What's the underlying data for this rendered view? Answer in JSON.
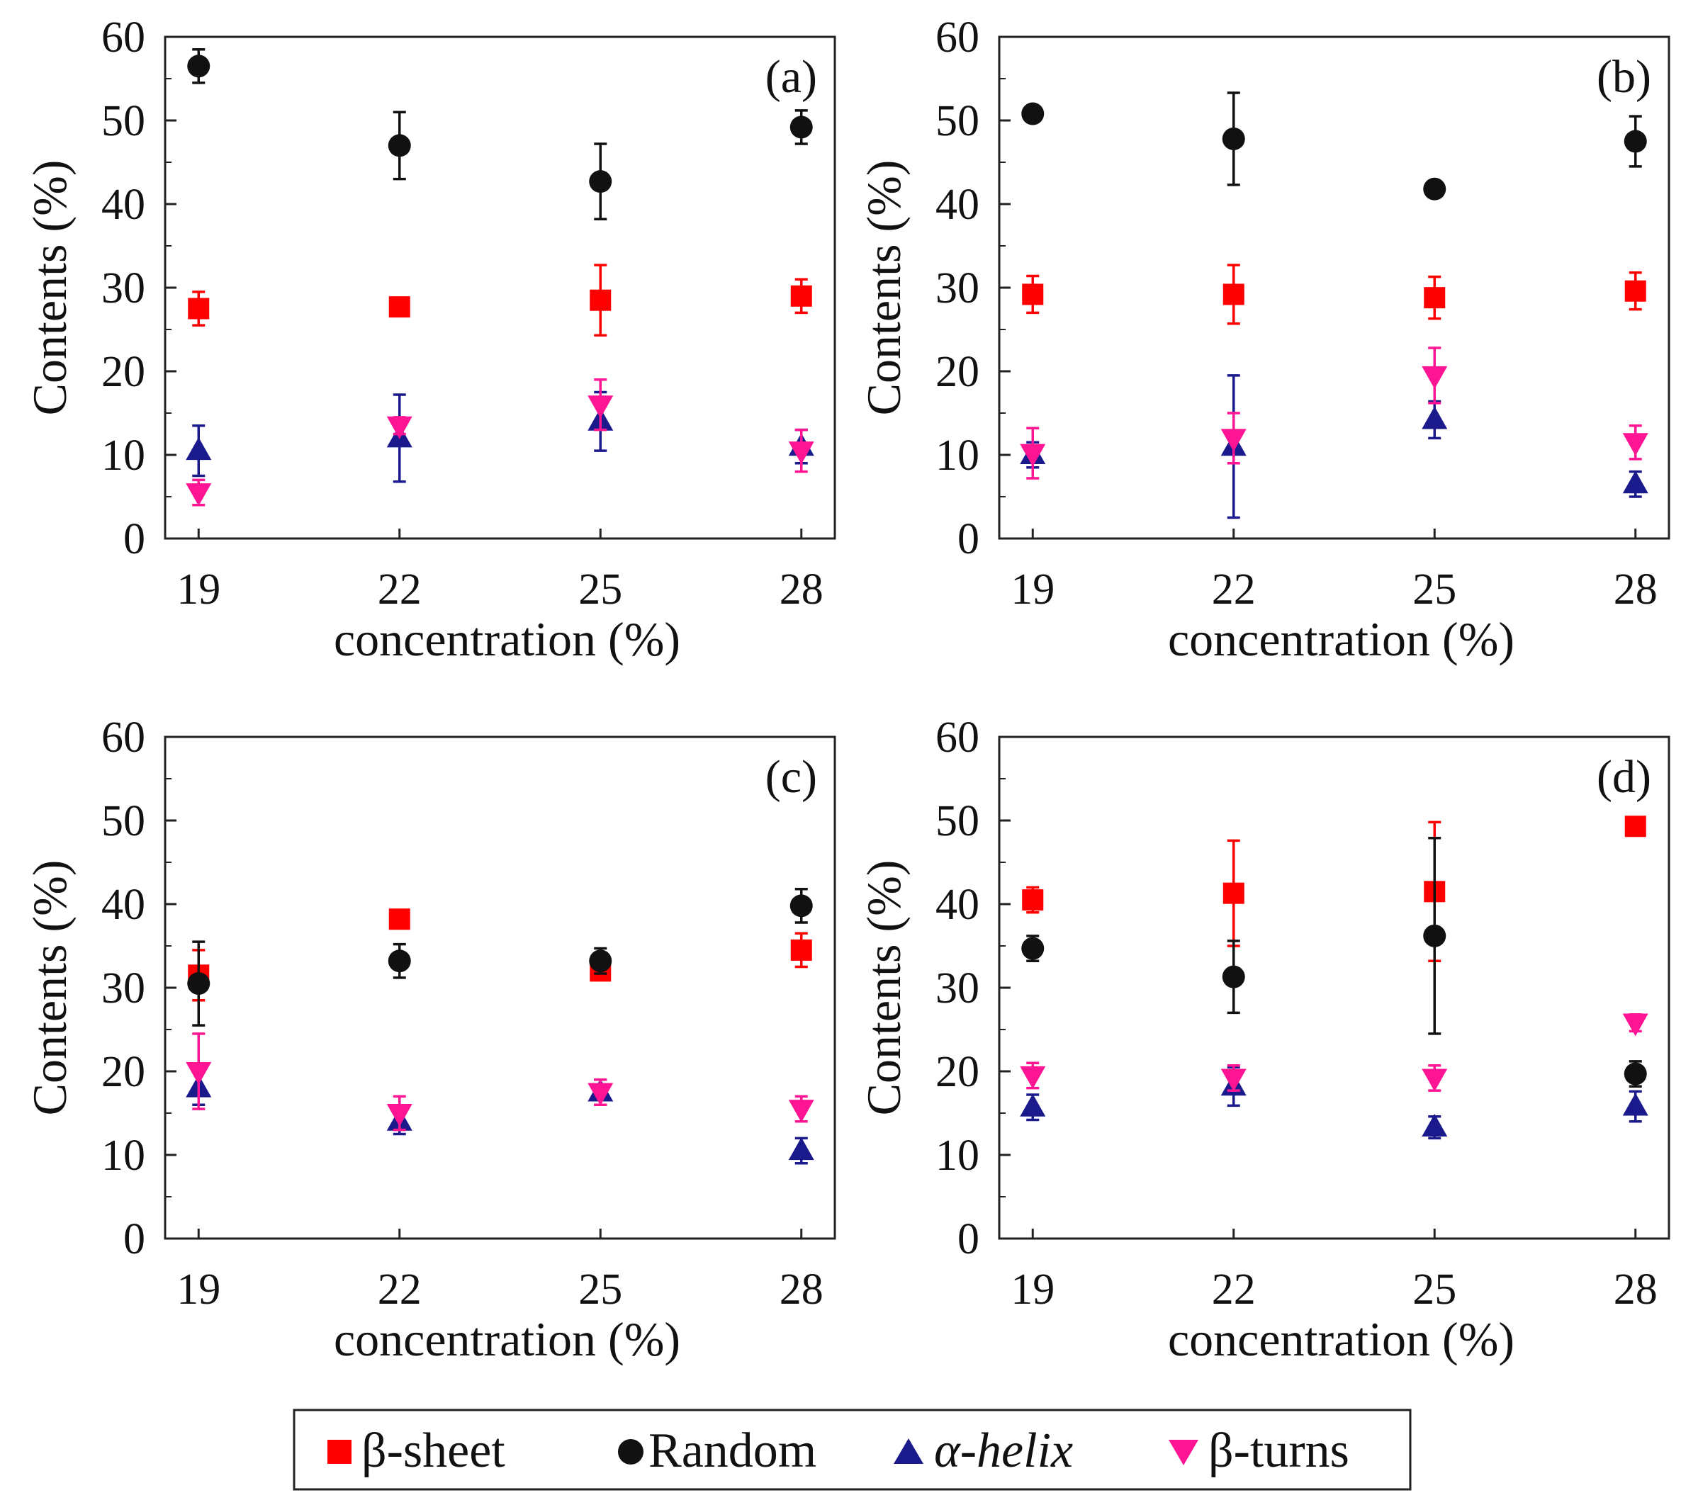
{
  "legend": [
    {
      "name": "β-sheet",
      "color": "#ff0000",
      "marker": "square"
    },
    {
      "name": "Random",
      "color": "#111111",
      "marker": "circle"
    },
    {
      "name": "α-helix",
      "color": "#1a1a8c",
      "marker": "triangle-up"
    },
    {
      "name": "β-turns",
      "color": "#ff1493",
      "marker": "triangle-down"
    }
  ],
  "chart_data": [
    {
      "type": "scatter",
      "panel_label": "(a)",
      "xlabel": "concentration (%)",
      "ylabel": "Contents (%)",
      "categories": [
        "19",
        "22",
        "25",
        "28"
      ],
      "ylim": [
        0,
        60
      ],
      "yticks": [
        "0",
        "10",
        "20",
        "30",
        "40",
        "50",
        "60"
      ],
      "series": [
        {
          "name": "β-sheet",
          "values": [
            27.5,
            27.7,
            28.5,
            29.0
          ],
          "errors": [
            2.0,
            1.0,
            4.2,
            2.0
          ]
        },
        {
          "name": "Random",
          "values": [
            56.5,
            47.0,
            42.7,
            49.2
          ],
          "errors": [
            2.0,
            4.0,
            4.5,
            2.0
          ]
        },
        {
          "name": "α-helix",
          "values": [
            10.5,
            12.0,
            14.0,
            11.0
          ],
          "errors": [
            3.0,
            5.2,
            3.5,
            2.0
          ]
        },
        {
          "name": "β-turns",
          "values": [
            5.5,
            13.5,
            16.0,
            10.5
          ],
          "errors": [
            1.5,
            1.0,
            3.0,
            2.5
          ]
        }
      ]
    },
    {
      "type": "scatter",
      "panel_label": "(b)",
      "xlabel": "concentration (%)",
      "ylabel": "Contents (%)",
      "categories": [
        "19",
        "22",
        "25",
        "28"
      ],
      "ylim": [
        0,
        60
      ],
      "yticks": [
        "0",
        "10",
        "20",
        "30",
        "40",
        "50",
        "60"
      ],
      "series": [
        {
          "name": "β-sheet",
          "values": [
            29.2,
            29.2,
            28.8,
            29.6
          ],
          "errors": [
            2.2,
            3.5,
            2.5,
            2.2
          ]
        },
        {
          "name": "Random",
          "values": [
            50.8,
            47.8,
            41.8,
            47.5
          ],
          "errors": [
            1.0,
            5.5,
            0.5,
            3.0
          ]
        },
        {
          "name": "α-helix",
          "values": [
            10.0,
            11.0,
            14.2,
            6.5
          ],
          "errors": [
            1.5,
            8.5,
            2.2,
            1.5
          ]
        },
        {
          "name": "β-turns",
          "values": [
            10.2,
            12.0,
            19.5,
            11.5
          ],
          "errors": [
            3.0,
            3.0,
            3.3,
            2.0
          ]
        }
      ]
    },
    {
      "type": "scatter",
      "panel_label": "(c)",
      "xlabel": "concentration (%)",
      "ylabel": "Contents (%)",
      "categories": [
        "19",
        "22",
        "25",
        "28"
      ],
      "ylim": [
        0,
        60
      ],
      "yticks": [
        "0",
        "10",
        "20",
        "30",
        "40",
        "50",
        "60"
      ],
      "series": [
        {
          "name": "β-sheet",
          "values": [
            31.5,
            38.2,
            32.0,
            34.5
          ],
          "errors": [
            3.0,
            0.5,
            0.5,
            2.0
          ]
        },
        {
          "name": "Random",
          "values": [
            30.5,
            33.2,
            33.2,
            39.8
          ],
          "errors": [
            5.0,
            2.0,
            1.5,
            2.0
          ]
        },
        {
          "name": "α-helix",
          "values": [
            18.0,
            14.0,
            17.5,
            10.5
          ],
          "errors": [
            2.0,
            1.5,
            1.5,
            1.5
          ]
        },
        {
          "name": "β-turns",
          "values": [
            20.0,
            15.0,
            17.5,
            15.5
          ],
          "errors": [
            4.5,
            2.0,
            1.5,
            1.5
          ]
        }
      ]
    },
    {
      "type": "scatter",
      "panel_label": "(d)",
      "xlabel": "concentration (%)",
      "ylabel": "Contents (%)",
      "categories": [
        "19",
        "22",
        "25",
        "28"
      ],
      "ylim": [
        0,
        60
      ],
      "yticks": [
        "0",
        "10",
        "20",
        "30",
        "40",
        "50",
        "60"
      ],
      "series": [
        {
          "name": "β-sheet",
          "values": [
            40.5,
            41.3,
            41.5,
            49.3
          ],
          "errors": [
            1.5,
            6.3,
            8.3,
            0.5
          ]
        },
        {
          "name": "Random",
          "values": [
            34.7,
            31.3,
            36.2,
            19.7
          ],
          "errors": [
            1.5,
            4.3,
            11.7,
            1.5
          ]
        },
        {
          "name": "α-helix",
          "values": [
            15.7,
            18.2,
            13.3,
            15.8
          ],
          "errors": [
            1.5,
            2.3,
            1.3,
            1.8
          ]
        },
        {
          "name": "β-turns",
          "values": [
            19.5,
            19.2,
            19.2,
            25.8
          ],
          "errors": [
            1.5,
            1.5,
            1.5,
            1.0
          ]
        }
      ]
    }
  ]
}
